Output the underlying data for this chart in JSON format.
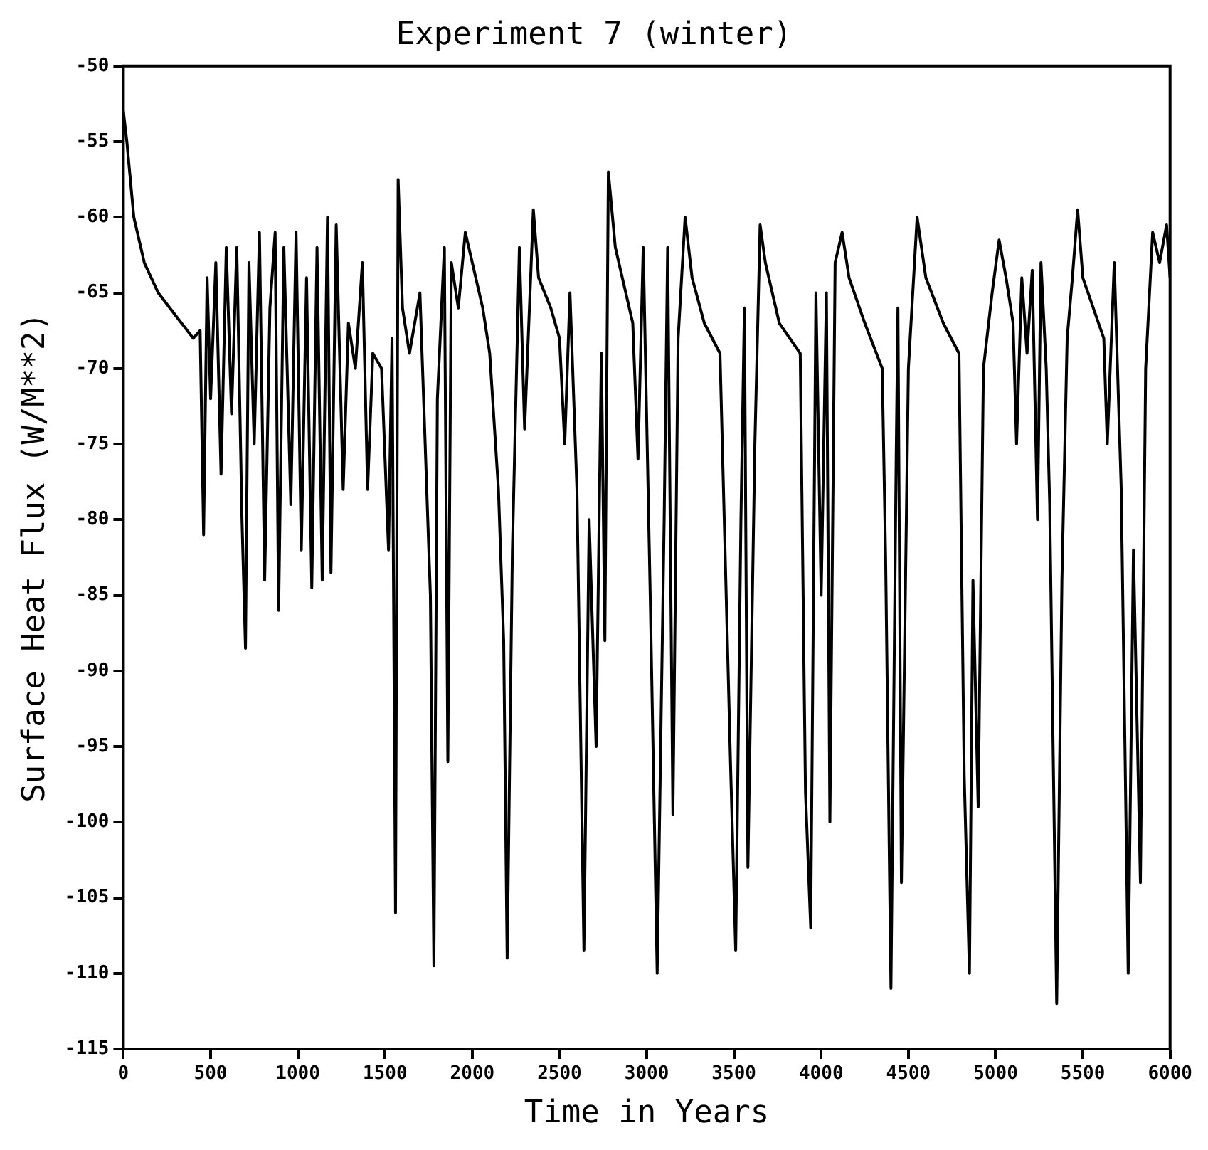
{
  "chart_data": {
    "type": "line",
    "title": "Experiment 7 (winter)",
    "xlabel": "Time in Years",
    "ylabel": "Surface Heat Flux (W/M**2)",
    "xlim": [
      0,
      6000
    ],
    "xticks": [
      0,
      500,
      1000,
      1500,
      2000,
      2500,
      3000,
      3500,
      4000,
      4500,
      5000,
      5500,
      6000
    ],
    "ylim": [
      -115,
      -50
    ],
    "yticks": [
      -115,
      -110,
      -105,
      -100,
      -95,
      -90,
      -85,
      -80,
      -75,
      -70,
      -65,
      -60,
      -55,
      -50
    ],
    "grid": false,
    "legend": false,
    "marker": "none",
    "line_style": "solid",
    "series": [
      {
        "color": "#000000",
        "x": [
          0,
          20,
          60,
          120,
          200,
          300,
          400,
          440,
          460,
          480,
          500,
          530,
          560,
          590,
          620,
          650,
          680,
          700,
          720,
          750,
          780,
          810,
          840,
          870,
          890,
          920,
          960,
          990,
          1020,
          1050,
          1080,
          1110,
          1140,
          1170,
          1190,
          1220,
          1260,
          1290,
          1330,
          1370,
          1400,
          1430,
          1480,
          1520,
          1540,
          1560,
          1575,
          1600,
          1640,
          1700,
          1760,
          1780,
          1800,
          1840,
          1860,
          1880,
          1920,
          1960,
          2000,
          2060,
          2100,
          2150,
          2180,
          2200,
          2230,
          2270,
          2300,
          2350,
          2380,
          2450,
          2500,
          2530,
          2560,
          2600,
          2640,
          2670,
          2710,
          2740,
          2760,
          2780,
          2820,
          2880,
          2920,
          2950,
          2980,
          3020,
          3060,
          3100,
          3120,
          3150,
          3180,
          3220,
          3260,
          3330,
          3420,
          3480,
          3510,
          3540,
          3560,
          3580,
          3620,
          3650,
          3680,
          3760,
          3880,
          3910,
          3940,
          3970,
          4000,
          4030,
          4050,
          4080,
          4120,
          4160,
          4250,
          4350,
          4370,
          4400,
          4430,
          4440,
          4460,
          4500,
          4550,
          4600,
          4700,
          4790,
          4820,
          4850,
          4870,
          4900,
          4930,
          4980,
          5020,
          5060,
          5100,
          5120,
          5150,
          5180,
          5210,
          5240,
          5260,
          5290,
          5310,
          5350,
          5380,
          5410,
          5440,
          5470,
          5500,
          5560,
          5620,
          5640,
          5680,
          5720,
          5760,
          5790,
          5830,
          5860,
          5900,
          5940,
          5980,
          6000
        ],
        "values": [
          -53,
          -55,
          -60,
          -63,
          -65,
          -66.5,
          -68,
          -67.5,
          -81,
          -64,
          -72,
          -63,
          -77,
          -62,
          -73,
          -62,
          -80,
          -88.5,
          -63,
          -75,
          -61,
          -84,
          -66,
          -61,
          -86,
          -62,
          -79,
          -61,
          -82,
          -64,
          -84.5,
          -62,
          -84,
          -60,
          -83.5,
          -60.5,
          -78,
          -67,
          -70,
          -63,
          -78,
          -69,
          -70,
          -82,
          -68,
          -106,
          -57.5,
          -66,
          -69,
          -65,
          -85,
          -109.5,
          -72,
          -62,
          -96,
          -63,
          -66,
          -61,
          -63,
          -66,
          -69,
          -78,
          -88,
          -109,
          -82,
          -62,
          -74,
          -59.5,
          -64,
          -66,
          -68,
          -75,
          -65,
          -78,
          -108.5,
          -80,
          -95,
          -69,
          -88,
          -57,
          -62,
          -65,
          -67,
          -76,
          -62,
          -85,
          -110,
          -80,
          -62,
          -99.5,
          -68,
          -60,
          -64,
          -67,
          -69,
          -96,
          -108.5,
          -80,
          -66,
          -103,
          -75,
          -60.5,
          -63,
          -67,
          -69,
          -98,
          -107,
          -65,
          -85,
          -65,
          -100,
          -63,
          -61,
          -64,
          -67,
          -70,
          -83,
          -111,
          -76,
          -66,
          -104,
          -70,
          -60,
          -64,
          -67,
          -69,
          -97,
          -110,
          -84,
          -99,
          -70,
          -65,
          -61.5,
          -64,
          -67,
          -75,
          -64,
          -69,
          -63.5,
          -80,
          -63,
          -70,
          -79,
          -112,
          -84,
          -68,
          -64,
          -59.5,
          -64,
          -66,
          -68,
          -75,
          -63,
          -78,
          -110,
          -82,
          -104,
          -70,
          -61,
          -63,
          -60.5,
          -64
        ]
      }
    ]
  }
}
